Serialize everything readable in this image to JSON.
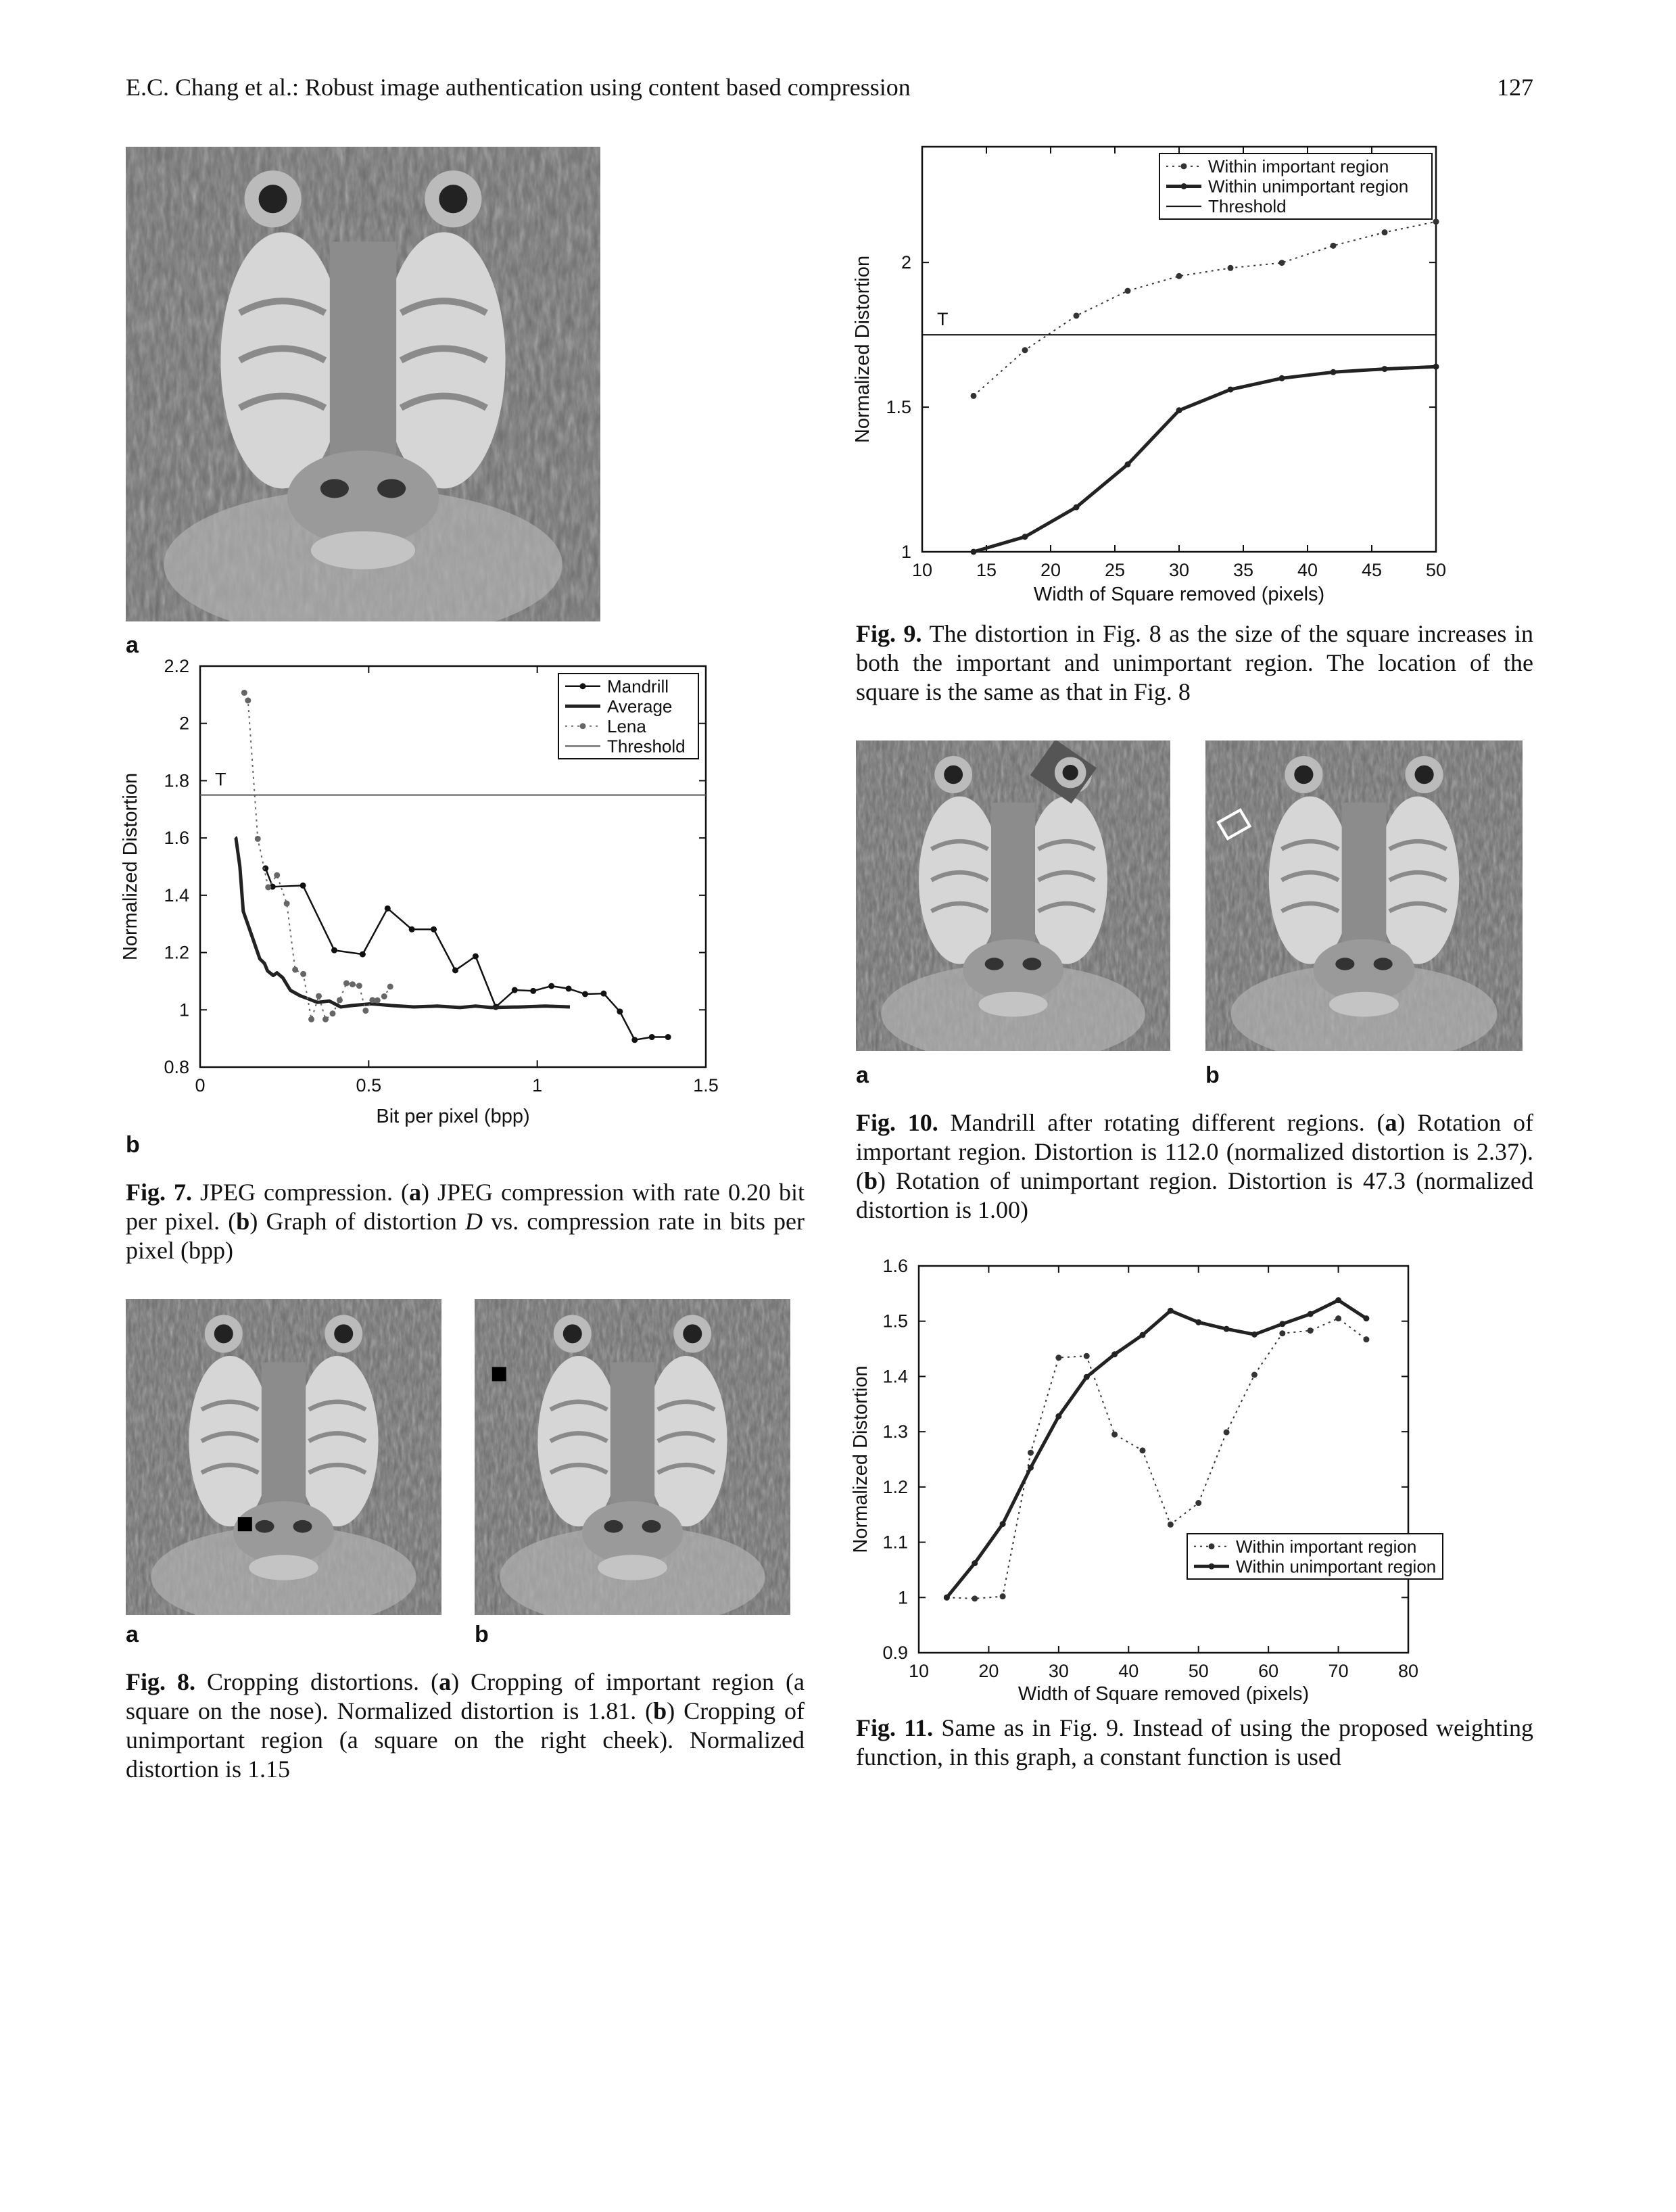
{
  "header": {
    "running_title": "E.C. Chang et al.: Robust image authentication using content based compression",
    "page_number": "127"
  },
  "fig7": {
    "label_a": "a",
    "label_b": "b",
    "caption": {
      "lead": "Fig. 7.",
      "t1": " JPEG compression. (",
      "a": "a",
      "t2": ") JPEG compression with rate 0.20 bit per pixel. (",
      "b": "b",
      "t3": ") Graph of distortion ",
      "var": "D",
      "t4": " vs. compression rate in bits per pixel (bpp)"
    }
  },
  "fig8": {
    "label_a": "a",
    "label_b": "b",
    "caption": {
      "lead": "Fig. 8.",
      "t1": " Cropping distortions. (",
      "a": "a",
      "t2": ") Cropping of important region (a square on the nose). Normalized distortion is 1.81. (",
      "b": "b",
      "t3": ") Cropping of unimportant region (a square on the right cheek). Normalized distortion is 1.15"
    }
  },
  "fig9": {
    "caption": {
      "lead": "Fig. 9.",
      "t1": " The distortion in Fig. 8 as the size of the square increases in both the important and unimportant region. The location of the square is the same as that in Fig. 8"
    }
  },
  "fig10": {
    "label_a": "a",
    "label_b": "b",
    "caption": {
      "lead": "Fig. 10.",
      "t1": " Mandrill after rotating different regions. (",
      "a": "a",
      "t2": ") Rotation of important region. Distortion is 112.0 (normalized distortion is 2.37). (",
      "b": "b",
      "t3": ") Rotation of unimportant region. Distortion is 47.3 (normalized distortion is 1.00)"
    }
  },
  "fig11": {
    "caption": {
      "lead": "Fig. 11.",
      "t1": " Same as in Fig. 9. Instead of using the proposed weighting function, in this graph, a constant function is used"
    }
  },
  "chart_data": [
    {
      "id": "fig7b",
      "type": "line",
      "xlabel": "Bit per pixel (bpp)",
      "ylabel": "Normalized Distortion",
      "xlim": [
        0,
        1.5
      ],
      "ylim": [
        0.8,
        2.2
      ],
      "xticks": [
        "0",
        "0.5",
        "1",
        "1.5"
      ],
      "yticks": [
        "0.8",
        "1",
        "1.2",
        "1.4",
        "1.6",
        "1.8",
        "2",
        "2.2"
      ],
      "grid": false,
      "legend": "top-right",
      "threshold": {
        "value": 1.75,
        "label": "T",
        "legend_name": "Threshold",
        "color": "#555555"
      },
      "series": [
        {
          "name": "Mandrill",
          "line_style": "solid",
          "markers": true,
          "color": "#111111",
          "x": [
            0.194,
            0.215,
            0.305,
            0.398,
            0.482,
            0.556,
            0.628,
            0.693,
            0.757,
            0.817,
            0.877,
            0.933,
            0.988,
            1.042,
            1.093,
            1.142,
            1.197,
            1.245,
            1.289,
            1.34,
            1.388
          ],
          "y": [
            1.494,
            1.43,
            1.434,
            1.208,
            1.194,
            1.354,
            1.281,
            1.281,
            1.138,
            1.187,
            1.01,
            1.069,
            1.066,
            1.083,
            1.074,
            1.055,
            1.057,
            0.994,
            0.895,
            0.905,
            0.905
          ]
        },
        {
          "name": "Average",
          "line_style": "thick",
          "markers": false,
          "color": "#222222",
          "x": [
            0.104,
            0.106,
            0.118,
            0.128,
            0.143,
            0.16,
            0.177,
            0.191,
            0.2,
            0.217,
            0.228,
            0.245,
            0.268,
            0.297,
            0.32,
            0.348,
            0.383,
            0.417,
            0.451,
            0.508,
            0.566,
            0.634,
            0.703,
            0.771,
            0.817,
            0.863,
            0.954,
            1.023,
            1.097
          ],
          "y": [
            1.602,
            1.6,
            1.5,
            1.344,
            1.294,
            1.236,
            1.178,
            1.162,
            1.136,
            1.12,
            1.129,
            1.112,
            1.068,
            1.049,
            1.039,
            1.026,
            1.031,
            1.01,
            1.015,
            1.021,
            1.015,
            1.01,
            1.013,
            1.008,
            1.013,
            1.008,
            1.01,
            1.013,
            1.01
          ]
        },
        {
          "name": "Lena",
          "line_style": "dotted",
          "markers": true,
          "color": "#666666",
          "x": [
            0.131,
            0.142,
            0.171,
            0.202,
            0.228,
            0.257,
            0.282,
            0.306,
            0.33,
            0.352,
            0.372,
            0.393,
            0.414,
            0.434,
            0.452,
            0.472,
            0.491,
            0.511,
            0.526,
            0.546,
            0.564
          ],
          "y": [
            2.107,
            2.08,
            1.597,
            1.428,
            1.47,
            1.371,
            1.14,
            1.125,
            0.967,
            1.048,
            0.967,
            0.987,
            1.034,
            1.093,
            1.089,
            1.084,
            0.997,
            1.034,
            1.033,
            1.047,
            1.081
          ]
        }
      ]
    },
    {
      "id": "fig9",
      "type": "line",
      "xlabel": "Width of Square removed (pixels)",
      "ylabel": "Normalized Distortion",
      "xlim": [
        10,
        50
      ],
      "ylim": [
        1,
        2.4
      ],
      "xticks": [
        "10",
        "15",
        "20",
        "25",
        "30",
        "35",
        "40",
        "45",
        "50"
      ],
      "yticks": [
        "1",
        "1.5",
        "2"
      ],
      "grid": false,
      "legend": "top-right",
      "threshold": {
        "value": 1.75,
        "label": "T",
        "legend_name": "Threshold",
        "color": "#111111"
      },
      "series": [
        {
          "name": "Within important region",
          "line_style": "dotted",
          "markers": true,
          "color": "#333333",
          "x": [
            14,
            18,
            22,
            26,
            30,
            34,
            38,
            42,
            46,
            50
          ],
          "y": [
            1.539,
            1.697,
            1.816,
            1.902,
            1.953,
            1.981,
            1.999,
            2.058,
            2.104,
            2.141
          ]
        },
        {
          "name": "Within unimportant region",
          "line_style": "thick",
          "markers": true,
          "color": "#222222",
          "x": [
            14,
            18,
            22,
            26,
            30,
            34,
            38,
            42,
            46,
            50
          ],
          "y": [
            1.0,
            1.052,
            1.154,
            1.302,
            1.489,
            1.561,
            1.6,
            1.621,
            1.632,
            1.64
          ]
        }
      ]
    },
    {
      "id": "fig11",
      "type": "line",
      "xlabel": "Width of Square removed (pixels)",
      "ylabel": "Normalized Distortion",
      "xlim": [
        10,
        80
      ],
      "ylim": [
        0.9,
        1.6
      ],
      "xticks": [
        "10",
        "20",
        "30",
        "40",
        "50",
        "60",
        "70",
        "80"
      ],
      "yticks": [
        "0.9",
        "1",
        "1.1",
        "1.2",
        "1.3",
        "1.4",
        "1.5",
        "1.6"
      ],
      "grid": false,
      "legend": "lower-right",
      "series": [
        {
          "name": "Within important region",
          "line_style": "dotted",
          "markers": true,
          "color": "#333333",
          "x": [
            14,
            18,
            22,
            26,
            30,
            34,
            38,
            42,
            46,
            50,
            54,
            58,
            62,
            66,
            70,
            74
          ],
          "y": [
            1.0,
            0.998,
            1.002,
            1.262,
            1.434,
            1.437,
            1.295,
            1.266,
            1.132,
            1.171,
            1.299,
            1.403,
            1.478,
            1.483,
            1.505,
            1.467
          ]
        },
        {
          "name": "Within unimportant region",
          "line_style": "thick",
          "markers": true,
          "color": "#222222",
          "x": [
            14,
            18,
            22,
            26,
            30,
            34,
            38,
            42,
            46,
            50,
            54,
            58,
            62,
            66,
            70,
            74
          ],
          "y": [
            1.0,
            1.062,
            1.133,
            1.235,
            1.328,
            1.399,
            1.44,
            1.475,
            1.519,
            1.498,
            1.486,
            1.476,
            1.495,
            1.513,
            1.538,
            1.505
          ]
        }
      ]
    }
  ]
}
